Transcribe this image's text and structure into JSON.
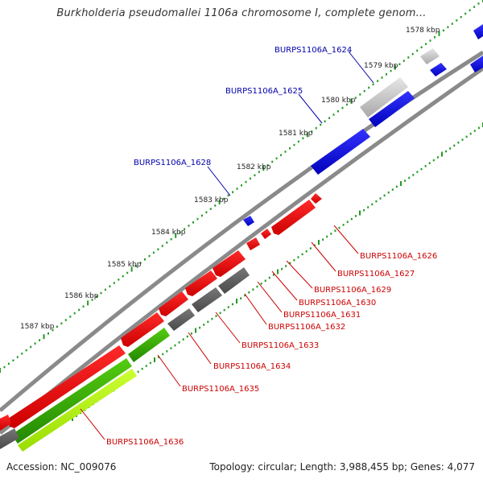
{
  "title": "Burkholderia pseudomallei 1106a chromosome I, complete genom...",
  "footer": {
    "accession": "Accession: NC_009076",
    "summary": "Topology: circular; Length: 3,988,455 bp; Genes: 4,077"
  },
  "colors": {
    "forward_gene": "#0000dd",
    "reverse_gene": "#ee0000",
    "other_gene_light": "#bdbdbd",
    "other_gene_dark": "#555555",
    "green_gene": "#33aa00",
    "light_green_gene": "#aaee00",
    "backbone": "#808080",
    "tick": "#229922",
    "label_forward": "#0000aa",
    "label_reverse": "#cc0000"
  },
  "ruler_labels": [
    "1578 kbp",
    "1579 kbp",
    "1580 kbp",
    "1581 kbp",
    "1582 kbp",
    "1583 kbp",
    "1584 kbp",
    "1585 kbp",
    "1586 kbp",
    "1587 kbp"
  ],
  "gene_labels_top": [
    "BURPS1106A_1624",
    "BURPS1106A_1625",
    "BURPS1106A_1628"
  ],
  "gene_labels_bottom": [
    "BURPS1106A_1626",
    "BURPS1106A_1627",
    "BURPS1106A_1629",
    "BURPS1106A_1630",
    "BURPS1106A_1631",
    "BURPS1106A_1632",
    "BURPS1106A_1633",
    "BURPS1106A_1634",
    "BURPS1106A_1635",
    "BURPS1106A_1636"
  ]
}
